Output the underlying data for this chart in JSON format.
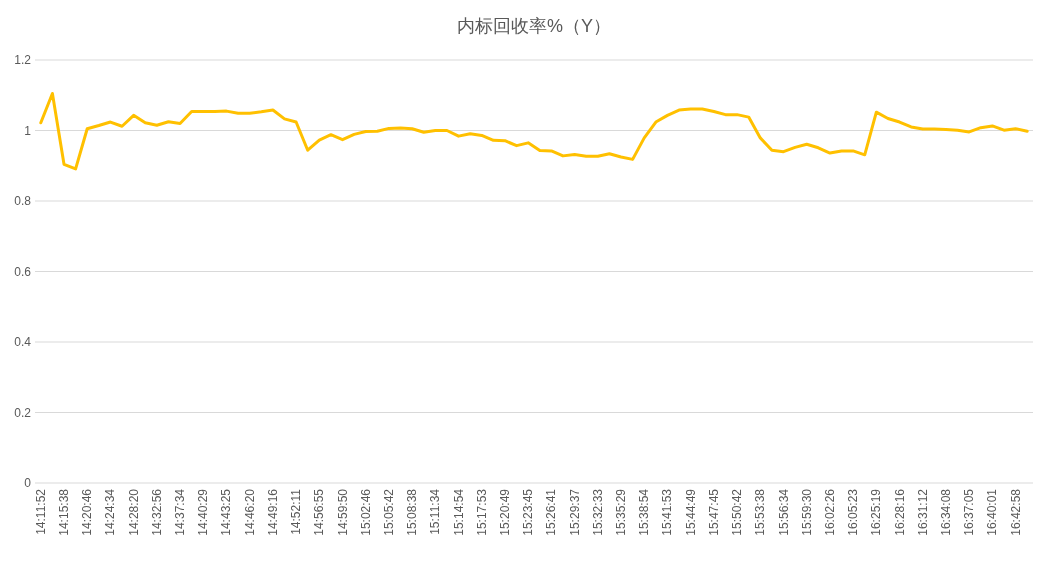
{
  "chart_data": {
    "type": "line",
    "title": "内标回收率%（Y）",
    "categories": [
      "14:11:52",
      null,
      "14:15:38",
      null,
      "14:20:46",
      null,
      "14:24:34",
      null,
      "14:28:20",
      null,
      "14:32:56",
      null,
      "14:37:34",
      null,
      "14:40:29",
      null,
      "14:43:25",
      null,
      "14:46:20",
      null,
      "14:49:16",
      null,
      "14:52:11",
      null,
      "14:56:55",
      null,
      "14:59:50",
      null,
      "15:02:46",
      null,
      "15:05:42",
      null,
      "15:08:38",
      null,
      "15:11:34",
      null,
      "15:14:54",
      null,
      "15:17:53",
      null,
      "15:20:49",
      null,
      "15:23:45",
      null,
      "15:26:41",
      null,
      "15:29:37",
      null,
      "15:32:33",
      null,
      "15:35:29",
      null,
      "15:38:54",
      null,
      "15:41:53",
      null,
      "15:44:49",
      null,
      "15:47:45",
      null,
      "15:50:42",
      null,
      "15:53:38",
      null,
      "15:56:34",
      null,
      "15:59:30",
      null,
      "16:02:26",
      null,
      "16:05:23",
      null,
      "16:25:19",
      null,
      "16:28:16",
      null,
      "16:31:12",
      null,
      "16:34:08",
      null,
      "16:37:05",
      null,
      "16:40:01",
      null,
      "16:42:58",
      null
    ],
    "series": [
      {
        "color": "#ffc000",
        "values": [
          1.022,
          1.105,
          0.904,
          0.891,
          1.005,
          1.014,
          1.024,
          1.012,
          1.043,
          1.022,
          1.015,
          1.025,
          1.02,
          1.054,
          1.054,
          1.054,
          1.055,
          1.049,
          1.049,
          1.053,
          1.058,
          1.033,
          1.024,
          0.944,
          0.973,
          0.988,
          0.974,
          0.989,
          0.997,
          0.998,
          1.006,
          1.007,
          1.005,
          0.995,
          1.0,
          1.0,
          0.984,
          0.991,
          0.986,
          0.972,
          0.971,
          0.957,
          0.965,
          0.943,
          0.942,
          0.928,
          0.932,
          0.927,
          0.927,
          0.934,
          0.925,
          0.918,
          0.979,
          1.024,
          1.043,
          1.058,
          1.061,
          1.061,
          1.054,
          1.045,
          1.045,
          1.038,
          0.979,
          0.944,
          0.94,
          0.952,
          0.961,
          0.951,
          0.936,
          0.942,
          0.942,
          0.931,
          1.052,
          1.034,
          1.024,
          1.01,
          1.004,
          1.004,
          1.003,
          1.001,
          0.996,
          1.008,
          1.013,
          1.001,
          1.005,
          0.998
        ]
      }
    ],
    "ylim": [
      0,
      1.2
    ],
    "yticks": [
      0,
      0.2,
      0.4,
      0.6,
      0.8,
      1,
      1.2
    ],
    "grid": "y"
  }
}
